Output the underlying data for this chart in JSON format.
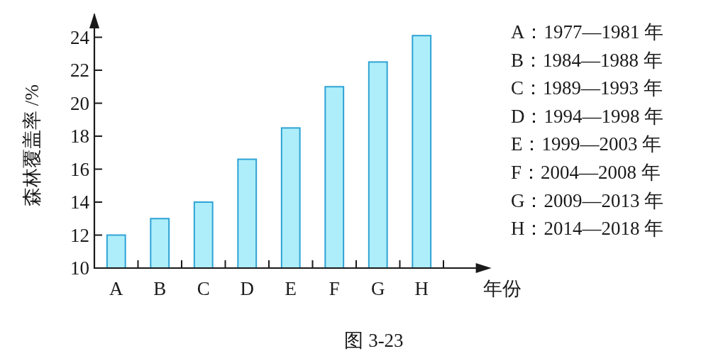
{
  "chart_data": {
    "type": "bar",
    "categories": [
      "A",
      "B",
      "C",
      "D",
      "E",
      "F",
      "G",
      "H"
    ],
    "values": [
      12,
      13,
      14,
      16.6,
      18.5,
      21,
      22.5,
      24.1
    ],
    "color": "#aeeefa",
    "ylim": [
      10,
      25.4
    ],
    "yticks": [
      10,
      12,
      14,
      16,
      18,
      20,
      22,
      24
    ],
    "ylabel": "森林覆盖率 /%",
    "xlabel": "年份",
    "annotations": [
      "A：1977—1981 年",
      "B：1984—1988 年",
      "C：1989—1993 年",
      "D：1994—1998 年",
      "E：1999—2003 年",
      "F：2004—2008 年",
      "G：2009—2013 年",
      "H：2014—2018 年",
      "图 3-23"
    ]
  }
}
